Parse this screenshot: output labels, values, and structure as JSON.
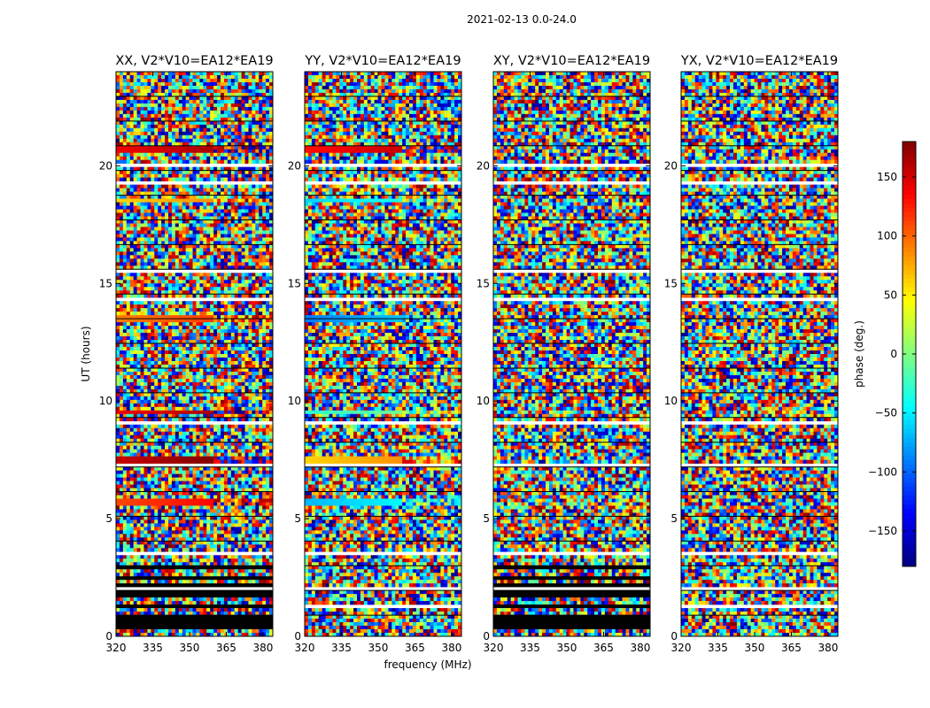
{
  "chart_data": {
    "type": "heatmap",
    "suptitle": "2021-02-13 0.0-24.0",
    "colormap": "jet",
    "panels": [
      {
        "title": "XX, V2*V10=EA12*EA19",
        "pol": "XX"
      },
      {
        "title": "YY, V2*V10=EA12*EA19",
        "pol": "YY"
      },
      {
        "title": "XY, V2*V10=EA12*EA19",
        "pol": "XY"
      },
      {
        "title": "YX, V2*V10=EA12*EA19",
        "pol": "YX"
      }
    ],
    "xlabel": "frequency (MHz)",
    "ylabel": "UT (hours)",
    "xlim": [
      320,
      384
    ],
    "ylim": [
      0,
      24
    ],
    "xticks": [
      320,
      335,
      350,
      365,
      380
    ],
    "yticks": [
      0,
      5,
      10,
      15,
      20
    ],
    "colorbar": {
      "label": "phase (deg.)",
      "range": [
        -180,
        180
      ],
      "ticks": [
        -150,
        -100,
        -50,
        0,
        50,
        100,
        150
      ],
      "tick_labels": [
        "−150",
        "−100",
        "−50",
        "0",
        "50",
        "100",
        "150"
      ]
    },
    "blank_bands_ut": [
      [
        0.4,
        0.5
      ],
      [
        1.2,
        1.3
      ],
      [
        2.0,
        2.1
      ],
      [
        3.5,
        3.6
      ],
      [
        5.2,
        5.3
      ],
      [
        6.1,
        6.2
      ],
      [
        7.2,
        7.4
      ],
      [
        9.0,
        9.1
      ],
      [
        10.3,
        10.4
      ],
      [
        11.5,
        11.6
      ],
      [
        14.3,
        14.4
      ],
      [
        15.5,
        15.6
      ],
      [
        17.2,
        17.3
      ],
      [
        19.2,
        19.3
      ],
      [
        20.0,
        20.1
      ],
      [
        21.7,
        21.8
      ]
    ],
    "flagged_black_bands_ut": [
      [
        0.3,
        0.9
      ],
      [
        1.2,
        1.4
      ],
      [
        1.7,
        1.9
      ],
      [
        2.1,
        2.2
      ],
      [
        2.4,
        2.6
      ],
      [
        2.8,
        3.0
      ]
    ],
    "flagged_black_panels": [
      "XX",
      "XY"
    ],
    "coherent_rows": [
      {
        "ut": 5.7,
        "phase_xx": 110,
        "phase_yy": -70
      },
      {
        "ut": 7.5,
        "phase_xx": 155,
        "phase_yy": 60
      },
      {
        "ut": 9.5,
        "phase_xx": 140,
        "phase_yy": -30
      },
      {
        "ut": 13.5,
        "phase_xx": 90,
        "phase_yy": -90
      },
      {
        "ut": 18.5,
        "phase_xx": 60,
        "phase_yy": -60
      },
      {
        "ut": 20.7,
        "phase_xx": 140,
        "phase_yy": 130
      }
    ]
  }
}
